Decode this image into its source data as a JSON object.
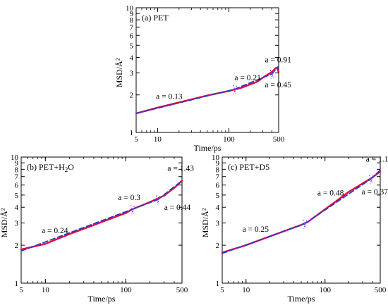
{
  "chart_data": [
    {
      "id": "a",
      "type": "line",
      "scale": "log-log",
      "title": "(a) PET",
      "xlabel": "Time/ps",
      "ylabel": "MSD/Å²",
      "xlim": [
        5,
        500
      ],
      "ylim": [
        1,
        10
      ],
      "x_ticks": [
        {
          "v": 5,
          "label": "5"
        },
        {
          "v": 10,
          "label": "10"
        },
        {
          "v": 100,
          "label": "100"
        },
        {
          "v": 500,
          "label": "500"
        }
      ],
      "y_ticks": [
        {
          "v": 1,
          "label": "1"
        },
        {
          "v": 2,
          "label": "2"
        },
        {
          "v": 3,
          "label": "3"
        },
        {
          "v": 4,
          "label": "4"
        },
        {
          "v": 5,
          "label": "5"
        },
        {
          "v": 6,
          "label": "6"
        },
        {
          "v": 7,
          "label": "7"
        },
        {
          "v": 8,
          "label": "8"
        },
        {
          "v": 9,
          "label": "9"
        },
        {
          "v": 10,
          "label": "10"
        }
      ],
      "series": [
        {
          "color": "#e8003c",
          "x": [
            5,
            10,
            20,
            50,
            100,
            150,
            250,
            300,
            400,
            460,
            480,
            500
          ],
          "y": [
            1.42,
            1.58,
            1.74,
            1.98,
            2.15,
            2.28,
            2.55,
            2.75,
            3.05,
            3.3,
            3.25,
            3.05
          ]
        },
        {
          "color": "#2a3cc8",
          "style": "dashed",
          "x": [
            5,
            120
          ],
          "y": [
            1.42,
            2.22
          ]
        },
        {
          "color": "#2a3cc8",
          "style": "dashed",
          "x": [
            120,
            400
          ],
          "y": [
            2.22,
            2.94
          ]
        },
        {
          "color": "#2a3cc8",
          "style": "dashed",
          "x": [
            400,
            500
          ],
          "y": [
            2.94,
            3.4
          ]
        }
      ],
      "annotations": [
        {
          "text": "a = 0.13",
          "x": 9.5,
          "y": 1.85
        },
        {
          "text": "a = 0.21",
          "x": 120,
          "y": 2.62
        },
        {
          "text": "a = 0.91",
          "x": 320,
          "y": 3.65
        },
        {
          "text": "a = 0.45",
          "x": 320,
          "y": 2.3
        }
      ],
      "markers": [
        {
          "x": 120,
          "y": 2.22
        },
        {
          "x": 400,
          "y": 2.94
        }
      ],
      "colors": {
        "data": "#e8003c",
        "fit": "#2a3cc8",
        "marker": "#a040ff"
      }
    },
    {
      "id": "b",
      "type": "line",
      "scale": "log-log",
      "title_parts": [
        "(b) PET+H",
        "2",
        "O"
      ],
      "xlabel": "Time/ps",
      "ylabel": "MSD/Å²",
      "xlim": [
        5,
        500
      ],
      "ylim": [
        1,
        10
      ],
      "x_ticks": [
        {
          "v": 5,
          "label": "5"
        },
        {
          "v": 10,
          "label": "10"
        },
        {
          "v": 100,
          "label": "100"
        },
        {
          "v": 500,
          "label": "500"
        }
      ],
      "y_ticks": [
        {
          "v": 1,
          "label": "1"
        },
        {
          "v": 2,
          "label": "2"
        },
        {
          "v": 3,
          "label": "3"
        },
        {
          "v": 4,
          "label": "4"
        },
        {
          "v": 5,
          "label": "5"
        },
        {
          "v": 6,
          "label": "6"
        },
        {
          "v": 7,
          "label": "7"
        },
        {
          "v": 8,
          "label": "8"
        },
        {
          "v": 9,
          "label": "9"
        },
        {
          "v": 10,
          "label": "10"
        }
      ],
      "series": [
        {
          "color": "#e8003c",
          "x": [
            5,
            10,
            20,
            50,
            100,
            120,
            200,
            300,
            400,
            500
          ],
          "y": [
            1.85,
            2.05,
            2.45,
            3.05,
            3.6,
            3.85,
            4.4,
            4.95,
            5.7,
            6.5
          ]
        },
        {
          "color": "#2a3cc8",
          "style": "dashed",
          "x": [
            5,
            120
          ],
          "y": [
            1.8,
            3.85
          ]
        },
        {
          "color": "#2a3cc8",
          "style": "dashed",
          "x": [
            120,
            250
          ],
          "y": [
            3.85,
            4.6
          ]
        },
        {
          "color": "#2a3cc8",
          "style": "dashed",
          "x": [
            250,
            500
          ],
          "y": [
            4.6,
            6.5
          ]
        }
      ],
      "annotations": [
        {
          "text": "a = 0.24",
          "x": 9,
          "y": 2.5
        },
        {
          "text": "a = 0.3",
          "x": 80,
          "y": 4.55
        },
        {
          "text": "a = 1.43",
          "x": 330,
          "y": 7.8
        },
        {
          "text": "a = 0.44",
          "x": 300,
          "y": 3.8
        }
      ],
      "markers": [
        {
          "x": 120,
          "y": 3.85
        },
        {
          "x": 250,
          "y": 4.6
        }
      ],
      "colors": {
        "data": "#e8003c",
        "fit": "#2a3cc8",
        "marker": "#a040ff"
      }
    },
    {
      "id": "c",
      "type": "line",
      "scale": "log-log",
      "title": "(c) PET+D5",
      "xlabel": "Time/ps",
      "ylabel": "MSD/Å²",
      "xlim": [
        5,
        500
      ],
      "ylim": [
        1,
        10
      ],
      "x_ticks": [
        {
          "v": 5,
          "label": "5"
        },
        {
          "v": 10,
          "label": "10"
        },
        {
          "v": 100,
          "label": "100"
        },
        {
          "v": 500,
          "label": "500"
        }
      ],
      "y_ticks": [
        {
          "v": 1,
          "label": "1"
        },
        {
          "v": 2,
          "label": "2"
        },
        {
          "v": 3,
          "label": "3"
        },
        {
          "v": 4,
          "label": "4"
        },
        {
          "v": 5,
          "label": "5"
        },
        {
          "v": 6,
          "label": "6"
        },
        {
          "v": 7,
          "label": "7"
        },
        {
          "v": 8,
          "label": "8"
        },
        {
          "v": 9,
          "label": "9"
        },
        {
          "v": 10,
          "label": "10"
        }
      ],
      "series": [
        {
          "color": "#e8003c",
          "x": [
            5,
            10,
            20,
            50,
            60,
            100,
            200,
            400,
            500
          ],
          "y": [
            1.75,
            2.0,
            2.35,
            2.9,
            3.05,
            3.85,
            5.3,
            6.9,
            7.7
          ]
        },
        {
          "color": "#2a3cc8",
          "style": "dashed",
          "x": [
            5,
            55
          ],
          "y": [
            1.72,
            2.95
          ]
        },
        {
          "color": "#2a3cc8",
          "style": "dashed",
          "x": [
            55,
            380
          ],
          "y": [
            2.95,
            6.7
          ]
        },
        {
          "color": "#2a3cc8",
          "style": "dashed",
          "x": [
            380,
            500
          ],
          "y": [
            6.7,
            7.9
          ]
        }
      ],
      "annotations": [
        {
          "text": "a = 0.25",
          "x": 9,
          "y": 2.55
        },
        {
          "text": "a = 0.48",
          "x": 80,
          "y": 4.95
        },
        {
          "text": "a = 1.1",
          "x": 330,
          "y": 9.2
        },
        {
          "text": "a = 0.37",
          "x": 290,
          "y": 5.05
        }
      ],
      "markers": [
        {
          "x": 55,
          "y": 2.95
        },
        {
          "x": 380,
          "y": 6.7
        }
      ],
      "colors": {
        "data": "#e8003c",
        "fit": "#2a3cc8",
        "marker": "#a040ff"
      }
    }
  ]
}
